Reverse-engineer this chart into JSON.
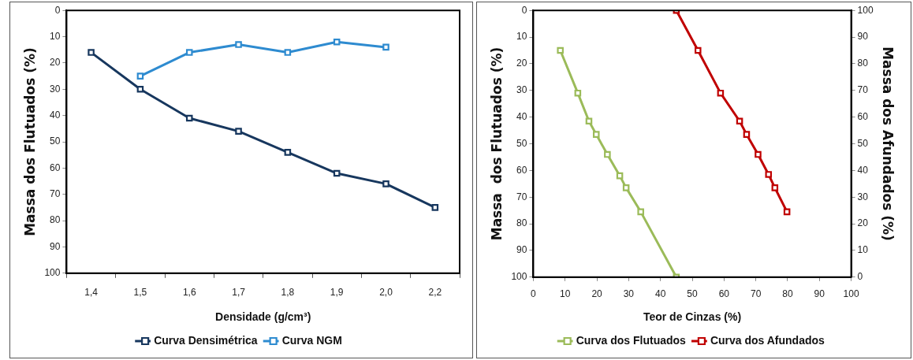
{
  "chart_data": [
    {
      "type": "line",
      "xlabel": "Densidade (g/cm³)",
      "ylabel": "Massa dos Flutuados (%)",
      "categories": [
        "1,4",
        "1,5",
        "1,6",
        "1,7",
        "1,8",
        "1,9",
        "2,0",
        "2,2"
      ],
      "ylim": [
        100,
        0
      ],
      "yticks": [
        0,
        10,
        20,
        30,
        40,
        50,
        60,
        70,
        80,
        90,
        100
      ],
      "grid": false,
      "legend": "bottom",
      "marker": "square",
      "line_style": "solid",
      "series": [
        {
          "name": "Curva Densimétrica",
          "color": "#17375e",
          "values": [
            16,
            30,
            41,
            46,
            54,
            62,
            66,
            75
          ]
        },
        {
          "name": "Curva NGM",
          "color": "#2e8bd0",
          "values": [
            null,
            25,
            16,
            13,
            16,
            12,
            14,
            null
          ]
        }
      ]
    },
    {
      "type": "line",
      "xlabel": "Teor de Cinzas (%)",
      "ylabel": "Massa  dos Flutuados (%)",
      "y2label": "Massa dos Afundados (%)",
      "xlim": [
        0,
        100
      ],
      "xticks": [
        0,
        10,
        20,
        30,
        40,
        50,
        60,
        70,
        80,
        90,
        100
      ],
      "ylim": [
        100,
        0
      ],
      "yticks": [
        0,
        10,
        20,
        30,
        40,
        50,
        60,
        70,
        80,
        90,
        100
      ],
      "y2lim": [
        0,
        100
      ],
      "y2ticks": [
        0,
        10,
        20,
        30,
        40,
        50,
        60,
        70,
        80,
        90,
        100
      ],
      "grid": false,
      "legend": "bottom",
      "marker": "square",
      "line_style": "solid",
      "series": [
        {
          "name": "Curva dos Flutuados",
          "color": "#9bbb59",
          "x": [
            8.5,
            14,
            17.5,
            19.8,
            23.3,
            27.2,
            29.2,
            33.8,
            45
          ],
          "values": [
            15,
            31,
            41.5,
            46.5,
            54,
            62,
            66.5,
            75.5,
            100
          ]
        },
        {
          "name": "Curva dos Afundados",
          "color": "#c00000",
          "axis": "y2",
          "x": [
            45,
            51.8,
            58.9,
            64.9,
            67.1,
            70.7,
            74,
            76,
            79.8
          ],
          "values": [
            100,
            85,
            69,
            58.5,
            53.5,
            46,
            38.5,
            33.5,
            24.5
          ]
        }
      ]
    }
  ]
}
